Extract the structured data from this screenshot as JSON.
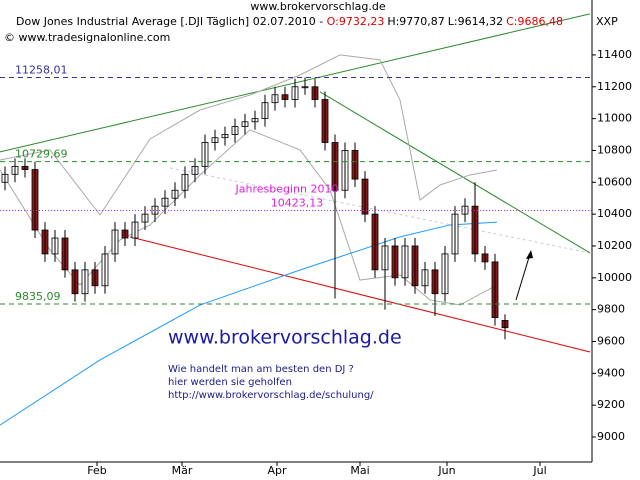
{
  "chart_data": {
    "type": "candlestick",
    "site": "www.brokervorschlag.de",
    "title": "Dow Jones Industrial Average [.DJI  Täglich] 02.07.2010 - ",
    "quote": [
      {
        "label": "O:9732,23",
        "color": "#e00000"
      },
      {
        "label": "H:9770,87",
        "color": "#000000"
      },
      {
        "label": "L:9614,32",
        "color": "#000000"
      },
      {
        "label": "C:9686,48",
        "color": "#e00000"
      }
    ],
    "source": "© www.tradesignalonline.com",
    "axis_label": "XXP",
    "ylim": [
      8843,
      11745
    ],
    "yticks": [
      9000,
      9200,
      9400,
      9600,
      9800,
      10000,
      10200,
      10400,
      10600,
      10800,
      11000,
      11200,
      11400
    ],
    "xlim": [
      -0.5,
      58.7
    ],
    "xticks": [
      {
        "value": 9.2,
        "label": "Feb"
      },
      {
        "value": 17.7,
        "label": "Mär"
      },
      {
        "value": 27.2,
        "label": "Apr"
      },
      {
        "value": 35.5,
        "label": "Mai"
      },
      {
        "value": 44.2,
        "label": "Jun"
      },
      {
        "value": 53.5,
        "label": "Jul"
      }
    ],
    "up_color": "#ffffff",
    "down_color": "#8b1a1a",
    "open": [
      10600,
      10650,
      10700,
      10680,
      10300,
      10150,
      10250,
      10050,
      9900,
      10050,
      9950,
      10150,
      10300,
      10250,
      10350,
      10400,
      10450,
      10500,
      10550,
      10650,
      10700,
      10850,
      10880,
      10900,
      10950,
      10980,
      11000,
      11100,
      11150,
      11120,
      11200,
      11200,
      11120,
      10850,
      10550,
      10800,
      10620,
      10400,
      10050,
      10200,
      10000,
      10200,
      9950,
      10050,
      9900,
      10150,
      10400,
      10450,
      10150,
      10100,
      9732.23
    ],
    "high": [
      10700,
      10750,
      10750,
      10730,
      10350,
      10300,
      10300,
      10100,
      10100,
      10100,
      10200,
      10350,
      10350,
      10400,
      10450,
      10500,
      10550,
      10600,
      10700,
      10750,
      10900,
      10930,
      10950,
      11000,
      11030,
      11050,
      11150,
      11200,
      11200,
      11250,
      11258.01,
      11250,
      11170,
      10900,
      10850,
      10850,
      10670,
      10450,
      10250,
      10250,
      10250,
      10250,
      10100,
      10100,
      10200,
      10450,
      10500,
      10600,
      10200,
      10150,
      9770.87
    ],
    "low": [
      10550,
      10600,
      10630,
      10250,
      10100,
      10100,
      10000,
      9850,
      9850,
      9900,
      9900,
      10100,
      10200,
      10200,
      10300,
      10350,
      10400,
      10450,
      10500,
      10600,
      10650,
      10800,
      10830,
      10850,
      10900,
      10930,
      10950,
      11050,
      11070,
      11070,
      11150,
      11070,
      10800,
      9870,
      10500,
      10570,
      10350,
      10000,
      9800,
      9950,
      9950,
      9900,
      9900,
      9760,
      9850,
      10100,
      10350,
      10100,
      10050,
      9700,
      9614.32
    ],
    "close": [
      10650,
      10700,
      10680,
      10300,
      10150,
      10250,
      10050,
      9900,
      10050,
      9950,
      10150,
      10300,
      10250,
      10350,
      10400,
      10450,
      10500,
      10550,
      10650,
      10700,
      10850,
      10880,
      10900,
      10950,
      10980,
      11000,
      11100,
      11150,
      11120,
      11200,
      11200,
      11120,
      10850,
      10550,
      10800,
      10620,
      10400,
      10050,
      10200,
      10000,
      10200,
      9950,
      10050,
      9900,
      10150,
      10400,
      10450,
      10150,
      10100,
      9750,
      9686.48
    ],
    "lines": [
      {
        "color": "#1e9aff",
        "width": 1,
        "x": [
          -0.5,
          9.5,
          19.5,
          29.5,
          39.5,
          44.5,
          49.2
        ],
        "values": [
          9075,
          9484,
          9829,
          10049,
          10257,
          10332,
          10350
        ]
      },
      {
        "color": "#aaaaaa",
        "width": 1,
        "x": [
          -0.5,
          4.5,
          9.5,
          14.5,
          19.5,
          24.5,
          29.5,
          33.5,
          37.5,
          39.5,
          41.5,
          43.5,
          46.5,
          49.2
        ],
        "values": [
          10740,
          10803,
          10395,
          10872,
          11054,
          11148,
          11274,
          11400,
          11369,
          11117,
          10489,
          10583,
          10646,
          10677
        ]
      },
      {
        "color": "#aaaaaa",
        "width": 1,
        "x": [
          -0.5,
          4.5,
          7.5,
          11.5,
          14.5,
          19.5,
          24.5,
          29.5,
          32.5,
          35.5,
          39.5,
          42.5,
          45.5,
          49.2
        ],
        "values": [
          10677,
          10175,
          9955,
          10238,
          10332,
          10646,
          10929,
          10803,
          10552,
          9986,
          10018,
          9861,
          9829,
          9955
        ]
      },
      {
        "color": "#2a8a2a",
        "width": 1,
        "x": [
          -0.5,
          58.5
        ],
        "values": [
          10791,
          11658
        ]
      },
      {
        "color": "#2a8a2a",
        "width": 1,
        "x": [
          31.5,
          58.5
        ],
        "values": [
          11168,
          10156
        ]
      },
      {
        "color": "#e00000",
        "width": 1,
        "x": [
          12.5,
          58.5
        ],
        "values": [
          10257,
          9534
        ]
      },
      {
        "color": "#cccccc",
        "width": 1,
        "dash": "3,3",
        "x": [
          16.5,
          58.5
        ],
        "values": [
          10690,
          10156
        ]
      }
    ],
    "levels": [
      {
        "value": 11258.01,
        "label": "11258,01",
        "color": "#333399",
        "dash": "5,4"
      },
      {
        "value": 10729.69,
        "label": "10729,69",
        "color": "#2a8a2a",
        "dash": "5,4"
      },
      {
        "value": 10423.13,
        "label": "10423,13",
        "note": "Jahresbeginn 2010",
        "color": "#e020e0",
        "dash": "1,2"
      },
      {
        "value": 9835.09,
        "label": "9835,09",
        "color": "#2a8a2a",
        "dash": "5,4"
      }
    ],
    "promo": "www.brokervorschlag.de",
    "promo_lines": [
      "Wie handelt man am besten  den DJ ?",
      "hier werden sie geholfen",
      "http://www.brokervorschlag.de/schulung/"
    ]
  }
}
